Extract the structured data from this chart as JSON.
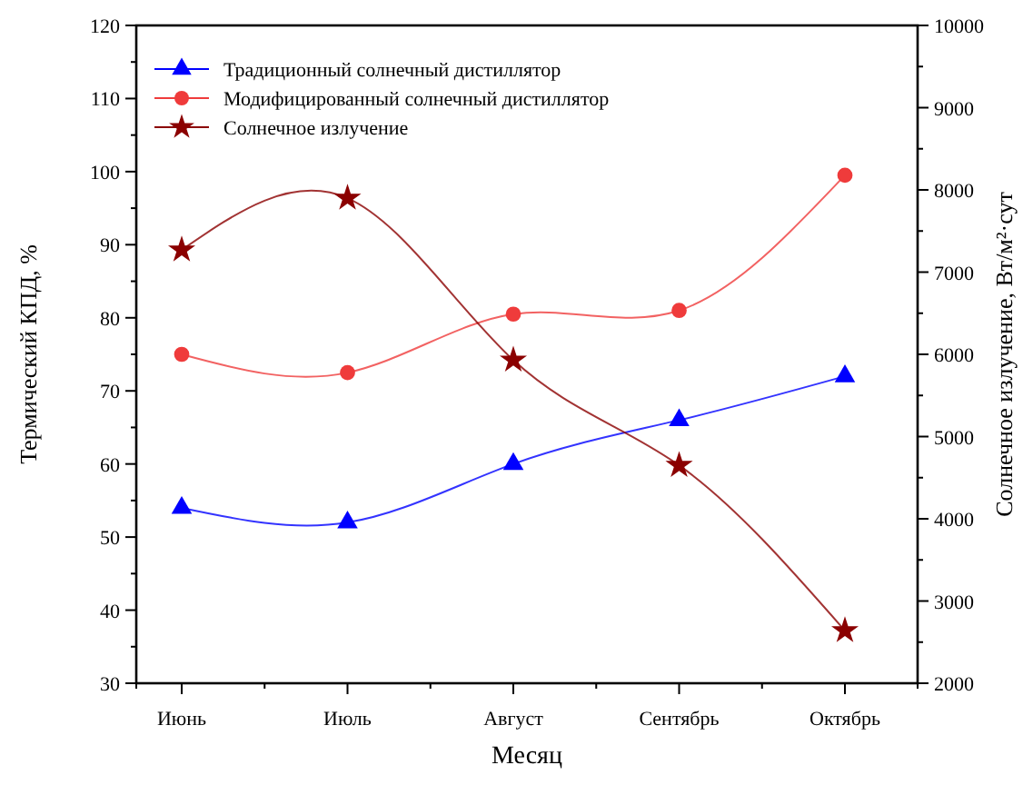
{
  "chart_data": {
    "type": "line",
    "categories": [
      "Июнь",
      "Июль",
      "Август",
      "Сентябрь",
      "Октябрь"
    ],
    "xlabel": "Месяц",
    "ylabel": "Термический КПД, %",
    "y2label": "Солнечное излучение, Вт/м²·сут",
    "ylim": [
      30,
      120
    ],
    "yticks": [
      30,
      40,
      50,
      60,
      70,
      80,
      90,
      100,
      110,
      120
    ],
    "y2lim": [
      2000,
      10000
    ],
    "y2ticks": [
      2000,
      3000,
      4000,
      5000,
      6000,
      7000,
      8000,
      9000,
      10000
    ],
    "legend": "top left",
    "grid": false,
    "series": [
      {
        "name": "Традиционный солнечный дистиллятор",
        "color": "#0000ff",
        "marker": "triangle",
        "values": [
          54,
          52,
          60,
          66,
          72
        ]
      },
      {
        "name": "Модифицированный солнечный дистиллятор",
        "color": "#ef3b3b",
        "marker": "circle",
        "values": [
          75,
          72.5,
          80.5,
          81,
          99.5
        ]
      },
      {
        "name": "Солнечное излучение",
        "color": "#8b0000",
        "marker": "star",
        "axis": "y2",
        "values": [
          7270,
          7900,
          5930,
          4650,
          2640
        ]
      }
    ]
  }
}
